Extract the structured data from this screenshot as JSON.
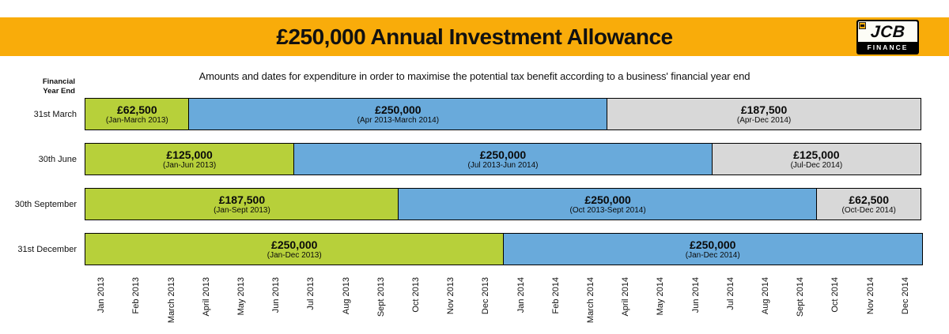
{
  "header": {
    "title": "£250,000 Annual Investment Allowance",
    "logo": {
      "brand": "JCB",
      "sub": "FINANCE"
    }
  },
  "subtitle": "Amounts and dates for expenditure in order to maximise the potential tax benefit according to a business' financial year end",
  "axis": {
    "header_line1": "Financial",
    "header_line2": "Year End"
  },
  "colors": {
    "band_bg": "#f9ac0a",
    "green": "#b7d03a",
    "blue": "#69aadb",
    "grey": "#d8d8d8",
    "border": "#000000"
  },
  "chart_data": {
    "type": "bar",
    "subtype": "horizontal-stacked-timeline",
    "x_unit": "month",
    "total_months": 24,
    "x_range": [
      "Jan 2013",
      "Dec 2014"
    ],
    "grid": false,
    "months": [
      "Jan 2013",
      "Feb 2013",
      "March 2013",
      "April 2013",
      "May 2013",
      "Jun 2013",
      "Jul 2013",
      "Aug 2013",
      "Sept 2013",
      "Oct 2013",
      "Nov 2013",
      "Dec 2013",
      "Jan 2014",
      "Feb 2014",
      "March 2014",
      "April 2014",
      "May 2014",
      "Jun 2014",
      "Jul 2014",
      "Aug 2014",
      "Sept 2014",
      "Oct 2014",
      "Nov 2014",
      "Dec 2014"
    ],
    "rows": [
      {
        "label": "31st March",
        "segments": [
          {
            "amount": "£62,500",
            "amount_value": 62500,
            "period": "(Jan-March 2013)",
            "start_month": 0,
            "span": 3,
            "color_key": "green"
          },
          {
            "amount": "£250,000",
            "amount_value": 250000,
            "period": "(Apr 2013-March 2014)",
            "start_month": 3,
            "span": 12,
            "color_key": "blue"
          },
          {
            "amount": "£187,500",
            "amount_value": 187500,
            "period": "(Apr-Dec 2014)",
            "start_month": 15,
            "span": 9,
            "color_key": "grey"
          }
        ]
      },
      {
        "label": "30th June",
        "segments": [
          {
            "amount": "£125,000",
            "amount_value": 125000,
            "period": "(Jan-Jun 2013)",
            "start_month": 0,
            "span": 6,
            "color_key": "green"
          },
          {
            "amount": "£250,000",
            "amount_value": 250000,
            "period": "(Jul 2013-Jun 2014)",
            "start_month": 6,
            "span": 12,
            "color_key": "blue"
          },
          {
            "amount": "£125,000",
            "amount_value": 125000,
            "period": "(Jul-Dec 2014)",
            "start_month": 18,
            "span": 6,
            "color_key": "grey"
          }
        ]
      },
      {
        "label": "30th September",
        "segments": [
          {
            "amount": "£187,500",
            "amount_value": 187500,
            "period": "(Jan-Sept 2013)",
            "start_month": 0,
            "span": 9,
            "color_key": "green"
          },
          {
            "amount": "£250,000",
            "amount_value": 250000,
            "period": "(Oct 2013-Sept 2014)",
            "start_month": 9,
            "span": 12,
            "color_key": "blue"
          },
          {
            "amount": "£62,500",
            "amount_value": 62500,
            "period": "(Oct-Dec 2014)",
            "start_month": 21,
            "span": 3,
            "color_key": "grey"
          }
        ]
      },
      {
        "label": "31st December",
        "segments": [
          {
            "amount": "£250,000",
            "amount_value": 250000,
            "period": "(Jan-Dec 2013)",
            "start_month": 0,
            "span": 12,
            "color_key": "green"
          },
          {
            "amount": "£250,000",
            "amount_value": 250000,
            "period": "(Jan-Dec 2014)",
            "start_month": 12,
            "span": 12,
            "color_key": "blue"
          }
        ]
      }
    ]
  }
}
